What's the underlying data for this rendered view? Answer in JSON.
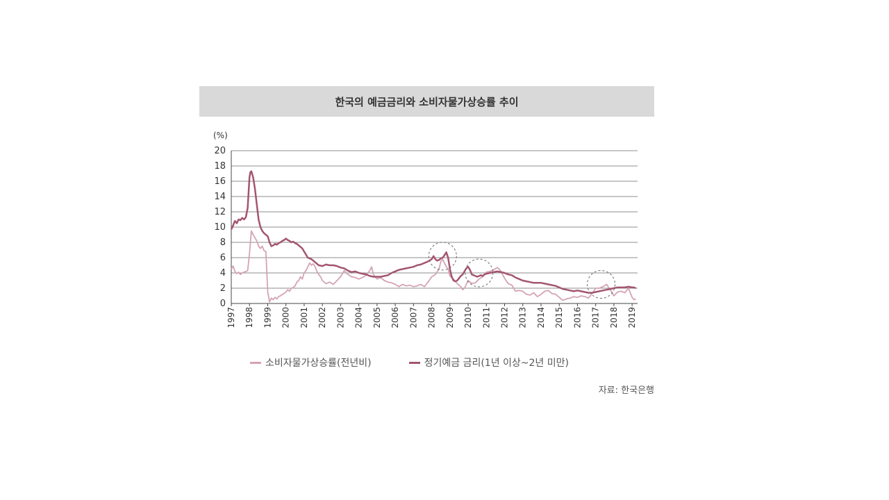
{
  "chart_data": {
    "type": "line",
    "title": "한국의 예금금리와 소비자물가상승률 추이",
    "ylabel": "(%)",
    "ylim": [
      0,
      20
    ],
    "yticks": [
      "0",
      "2",
      "4",
      "6",
      "8",
      "10",
      "12",
      "14",
      "16",
      "18",
      "20"
    ],
    "xlim": [
      1997.0,
      2019.3
    ],
    "xticks": [
      "1997",
      "1998",
      "1999",
      "2000",
      "2001",
      "2002",
      "2003",
      "2004",
      "2005",
      "2006",
      "2007",
      "2008",
      "2009",
      "2010",
      "2011",
      "2012",
      "2013",
      "2014",
      "2015",
      "2016",
      "2017",
      "2018",
      "2019"
    ],
    "grid": "horizontal",
    "legend_position": "bottom",
    "source": "자료: 한국은행",
    "highlights": [
      {
        "x": 2008.6,
        "y": 6.2
      },
      {
        "x": 2010.6,
        "y": 4.0
      },
      {
        "x": 2017.3,
        "y": 2.5
      }
    ],
    "series": [
      {
        "name": "소비자물가상승률(전년비)",
        "color": "#d4a3b1",
        "points": [
          [
            1997.0,
            4.5
          ],
          [
            1997.1,
            4.9
          ],
          [
            1997.2,
            4.2
          ],
          [
            1997.3,
            3.9
          ],
          [
            1997.4,
            4.1
          ],
          [
            1997.5,
            3.8
          ],
          [
            1997.6,
            4.0
          ],
          [
            1997.7,
            4.1
          ],
          [
            1997.8,
            4.2
          ],
          [
            1997.9,
            4.3
          ],
          [
            1998.0,
            6.5
          ],
          [
            1998.1,
            9.5
          ],
          [
            1998.2,
            9.0
          ],
          [
            1998.3,
            8.6
          ],
          [
            1998.4,
            8.2
          ],
          [
            1998.5,
            7.5
          ],
          [
            1998.6,
            7.2
          ],
          [
            1998.7,
            7.5
          ],
          [
            1998.8,
            6.9
          ],
          [
            1998.9,
            6.8
          ],
          [
            1999.0,
            1.5
          ],
          [
            1999.1,
            0.2
          ],
          [
            1999.2,
            0.7
          ],
          [
            1999.3,
            0.5
          ],
          [
            1999.4,
            0.8
          ],
          [
            1999.5,
            0.6
          ],
          [
            1999.6,
            0.9
          ],
          [
            1999.7,
            1.0
          ],
          [
            1999.8,
            1.2
          ],
          [
            1999.9,
            1.3
          ],
          [
            2000.0,
            1.5
          ],
          [
            2000.1,
            1.8
          ],
          [
            2000.2,
            1.6
          ],
          [
            2000.3,
            2.0
          ],
          [
            2000.4,
            2.1
          ],
          [
            2000.5,
            2.3
          ],
          [
            2000.6,
            2.8
          ],
          [
            2000.7,
            3.0
          ],
          [
            2000.8,
            3.5
          ],
          [
            2000.9,
            3.2
          ],
          [
            2001.0,
            4.0
          ],
          [
            2001.1,
            4.3
          ],
          [
            2001.2,
            4.8
          ],
          [
            2001.3,
            5.3
          ],
          [
            2001.4,
            5.0
          ],
          [
            2001.5,
            5.2
          ],
          [
            2001.6,
            4.8
          ],
          [
            2001.7,
            4.2
          ],
          [
            2001.8,
            3.8
          ],
          [
            2001.9,
            3.5
          ],
          [
            2002.0,
            3.0
          ],
          [
            2002.2,
            2.6
          ],
          [
            2002.4,
            2.8
          ],
          [
            2002.6,
            2.5
          ],
          [
            2002.8,
            3.0
          ],
          [
            2003.0,
            3.5
          ],
          [
            2003.2,
            4.3
          ],
          [
            2003.4,
            3.8
          ],
          [
            2003.6,
            3.5
          ],
          [
            2003.8,
            3.4
          ],
          [
            2004.0,
            3.2
          ],
          [
            2004.2,
            3.4
          ],
          [
            2004.4,
            3.7
          ],
          [
            2004.6,
            4.3
          ],
          [
            2004.7,
            4.8
          ],
          [
            2004.8,
            3.8
          ],
          [
            2005.0,
            3.2
          ],
          [
            2005.2,
            3.4
          ],
          [
            2005.4,
            3.0
          ],
          [
            2005.6,
            2.8
          ],
          [
            2005.8,
            2.7
          ],
          [
            2006.0,
            2.5
          ],
          [
            2006.2,
            2.2
          ],
          [
            2006.4,
            2.5
          ],
          [
            2006.6,
            2.3
          ],
          [
            2006.8,
            2.4
          ],
          [
            2007.0,
            2.2
          ],
          [
            2007.2,
            2.3
          ],
          [
            2007.4,
            2.5
          ],
          [
            2007.6,
            2.2
          ],
          [
            2007.8,
            2.8
          ],
          [
            2008.0,
            3.5
          ],
          [
            2008.2,
            3.8
          ],
          [
            2008.4,
            4.5
          ],
          [
            2008.5,
            5.5
          ],
          [
            2008.6,
            5.8
          ],
          [
            2008.7,
            5.3
          ],
          [
            2008.8,
            4.8
          ],
          [
            2008.9,
            4.5
          ],
          [
            2009.0,
            3.6
          ],
          [
            2009.2,
            3.2
          ],
          [
            2009.4,
            2.6
          ],
          [
            2009.6,
            2.2
          ],
          [
            2009.7,
            1.8
          ],
          [
            2009.8,
            2.0
          ],
          [
            2010.0,
            3.0
          ],
          [
            2010.2,
            2.6
          ],
          [
            2010.4,
            2.7
          ],
          [
            2010.6,
            3.2
          ],
          [
            2010.8,
            3.5
          ],
          [
            2011.0,
            4.1
          ],
          [
            2011.2,
            4.2
          ],
          [
            2011.4,
            4.4
          ],
          [
            2011.6,
            4.7
          ],
          [
            2011.7,
            4.5
          ],
          [
            2011.8,
            4.2
          ],
          [
            2012.0,
            3.3
          ],
          [
            2012.2,
            2.6
          ],
          [
            2012.4,
            2.4
          ],
          [
            2012.6,
            1.6
          ],
          [
            2012.8,
            1.7
          ],
          [
            2013.0,
            1.6
          ],
          [
            2013.2,
            1.2
          ],
          [
            2013.4,
            1.1
          ],
          [
            2013.6,
            1.4
          ],
          [
            2013.8,
            0.9
          ],
          [
            2014.0,
            1.2
          ],
          [
            2014.2,
            1.6
          ],
          [
            2014.4,
            1.7
          ],
          [
            2014.6,
            1.3
          ],
          [
            2014.8,
            1.2
          ],
          [
            2015.0,
            0.8
          ],
          [
            2015.2,
            0.4
          ],
          [
            2015.4,
            0.6
          ],
          [
            2015.6,
            0.7
          ],
          [
            2015.8,
            0.9
          ],
          [
            2016.0,
            0.8
          ],
          [
            2016.2,
            1.0
          ],
          [
            2016.4,
            0.9
          ],
          [
            2016.6,
            0.7
          ],
          [
            2016.8,
            1.3
          ],
          [
            2017.0,
            2.0
          ],
          [
            2017.2,
            2.0
          ],
          [
            2017.4,
            2.2
          ],
          [
            2017.6,
            2.5
          ],
          [
            2017.8,
            1.8
          ],
          [
            2018.0,
            1.0
          ],
          [
            2018.2,
            1.5
          ],
          [
            2018.4,
            1.6
          ],
          [
            2018.6,
            1.4
          ],
          [
            2018.8,
            2.0
          ],
          [
            2019.0,
            0.8
          ],
          [
            2019.1,
            0.5
          ],
          [
            2019.2,
            0.6
          ]
        ]
      },
      {
        "name": "정기예금 금리(1년 이상~2년 미만)",
        "color": "#a35570",
        "points": [
          [
            1997.0,
            9.7
          ],
          [
            1997.1,
            10.2
          ],
          [
            1997.2,
            10.8
          ],
          [
            1997.3,
            10.5
          ],
          [
            1997.4,
            11.0
          ],
          [
            1997.5,
            10.9
          ],
          [
            1997.6,
            11.2
          ],
          [
            1997.7,
            11.0
          ],
          [
            1997.8,
            11.3
          ],
          [
            1997.9,
            12.5
          ],
          [
            1998.0,
            16.5
          ],
          [
            1998.05,
            17.2
          ],
          [
            1998.1,
            17.3
          ],
          [
            1998.2,
            16.5
          ],
          [
            1998.3,
            15.0
          ],
          [
            1998.4,
            13.0
          ],
          [
            1998.5,
            11.0
          ],
          [
            1998.6,
            10.0
          ],
          [
            1998.7,
            9.5
          ],
          [
            1998.8,
            9.2
          ],
          [
            1998.9,
            9.0
          ],
          [
            1999.0,
            8.8
          ],
          [
            1999.1,
            8.0
          ],
          [
            1999.2,
            7.5
          ],
          [
            1999.3,
            7.6
          ],
          [
            1999.4,
            7.8
          ],
          [
            1999.5,
            7.7
          ],
          [
            1999.6,
            7.9
          ],
          [
            1999.7,
            8.0
          ],
          [
            1999.8,
            8.2
          ],
          [
            1999.9,
            8.3
          ],
          [
            2000.0,
            8.5
          ],
          [
            2000.1,
            8.3
          ],
          [
            2000.2,
            8.2
          ],
          [
            2000.3,
            8.0
          ],
          [
            2000.4,
            8.1
          ],
          [
            2000.5,
            7.9
          ],
          [
            2000.6,
            7.8
          ],
          [
            2000.7,
            7.6
          ],
          [
            2000.8,
            7.4
          ],
          [
            2000.9,
            7.2
          ],
          [
            2001.0,
            6.8
          ],
          [
            2001.2,
            6.0
          ],
          [
            2001.4,
            5.8
          ],
          [
            2001.6,
            5.4
          ],
          [
            2001.8,
            5.0
          ],
          [
            2002.0,
            4.9
          ],
          [
            2002.2,
            5.1
          ],
          [
            2002.4,
            5.0
          ],
          [
            2002.6,
            5.0
          ],
          [
            2002.8,
            4.9
          ],
          [
            2003.0,
            4.7
          ],
          [
            2003.2,
            4.6
          ],
          [
            2003.4,
            4.3
          ],
          [
            2003.6,
            4.1
          ],
          [
            2003.8,
            4.2
          ],
          [
            2004.0,
            4.0
          ],
          [
            2004.2,
            3.9
          ],
          [
            2004.4,
            3.8
          ],
          [
            2004.6,
            3.6
          ],
          [
            2004.8,
            3.5
          ],
          [
            2005.0,
            3.5
          ],
          [
            2005.2,
            3.5
          ],
          [
            2005.4,
            3.6
          ],
          [
            2005.6,
            3.7
          ],
          [
            2005.8,
            4.0
          ],
          [
            2006.0,
            4.2
          ],
          [
            2006.2,
            4.4
          ],
          [
            2006.4,
            4.5
          ],
          [
            2006.6,
            4.6
          ],
          [
            2006.8,
            4.7
          ],
          [
            2007.0,
            4.8
          ],
          [
            2007.2,
            5.0
          ],
          [
            2007.4,
            5.1
          ],
          [
            2007.6,
            5.3
          ],
          [
            2007.8,
            5.5
          ],
          [
            2008.0,
            5.8
          ],
          [
            2008.1,
            6.2
          ],
          [
            2008.2,
            5.8
          ],
          [
            2008.3,
            5.6
          ],
          [
            2008.4,
            5.7
          ],
          [
            2008.5,
            5.9
          ],
          [
            2008.6,
            6.0
          ],
          [
            2008.7,
            6.3
          ],
          [
            2008.8,
            6.7
          ],
          [
            2008.9,
            6.0
          ],
          [
            2009.0,
            4.5
          ],
          [
            2009.1,
            3.5
          ],
          [
            2009.2,
            3.0
          ],
          [
            2009.3,
            2.9
          ],
          [
            2009.4,
            3.0
          ],
          [
            2009.5,
            3.3
          ],
          [
            2009.6,
            3.6
          ],
          [
            2009.7,
            3.8
          ],
          [
            2009.8,
            4.2
          ],
          [
            2009.9,
            4.6
          ],
          [
            2010.0,
            4.8
          ],
          [
            2010.1,
            4.4
          ],
          [
            2010.2,
            3.8
          ],
          [
            2010.3,
            3.7
          ],
          [
            2010.4,
            3.6
          ],
          [
            2010.5,
            3.5
          ],
          [
            2010.6,
            3.6
          ],
          [
            2010.7,
            3.7
          ],
          [
            2010.8,
            3.6
          ],
          [
            2010.9,
            3.8
          ],
          [
            2011.0,
            3.9
          ],
          [
            2011.2,
            4.0
          ],
          [
            2011.4,
            4.1
          ],
          [
            2011.6,
            4.2
          ],
          [
            2011.8,
            4.1
          ],
          [
            2012.0,
            4.0
          ],
          [
            2012.2,
            3.8
          ],
          [
            2012.4,
            3.7
          ],
          [
            2012.6,
            3.4
          ],
          [
            2012.8,
            3.2
          ],
          [
            2013.0,
            3.0
          ],
          [
            2013.2,
            2.9
          ],
          [
            2013.4,
            2.8
          ],
          [
            2013.6,
            2.7
          ],
          [
            2013.8,
            2.7
          ],
          [
            2014.0,
            2.7
          ],
          [
            2014.2,
            2.6
          ],
          [
            2014.4,
            2.5
          ],
          [
            2014.6,
            2.4
          ],
          [
            2014.8,
            2.3
          ],
          [
            2015.0,
            2.1
          ],
          [
            2015.2,
            1.9
          ],
          [
            2015.4,
            1.8
          ],
          [
            2015.6,
            1.7
          ],
          [
            2015.8,
            1.6
          ],
          [
            2016.0,
            1.7
          ],
          [
            2016.2,
            1.6
          ],
          [
            2016.4,
            1.5
          ],
          [
            2016.6,
            1.4
          ],
          [
            2016.8,
            1.4
          ],
          [
            2017.0,
            1.5
          ],
          [
            2017.2,
            1.6
          ],
          [
            2017.4,
            1.7
          ],
          [
            2017.6,
            1.8
          ],
          [
            2017.8,
            1.9
          ],
          [
            2018.0,
            2.0
          ],
          [
            2018.2,
            2.1
          ],
          [
            2018.4,
            2.1
          ],
          [
            2018.6,
            2.1
          ],
          [
            2018.8,
            2.2
          ],
          [
            2019.0,
            2.1
          ],
          [
            2019.1,
            2.1
          ],
          [
            2019.2,
            2.0
          ]
        ]
      }
    ]
  }
}
